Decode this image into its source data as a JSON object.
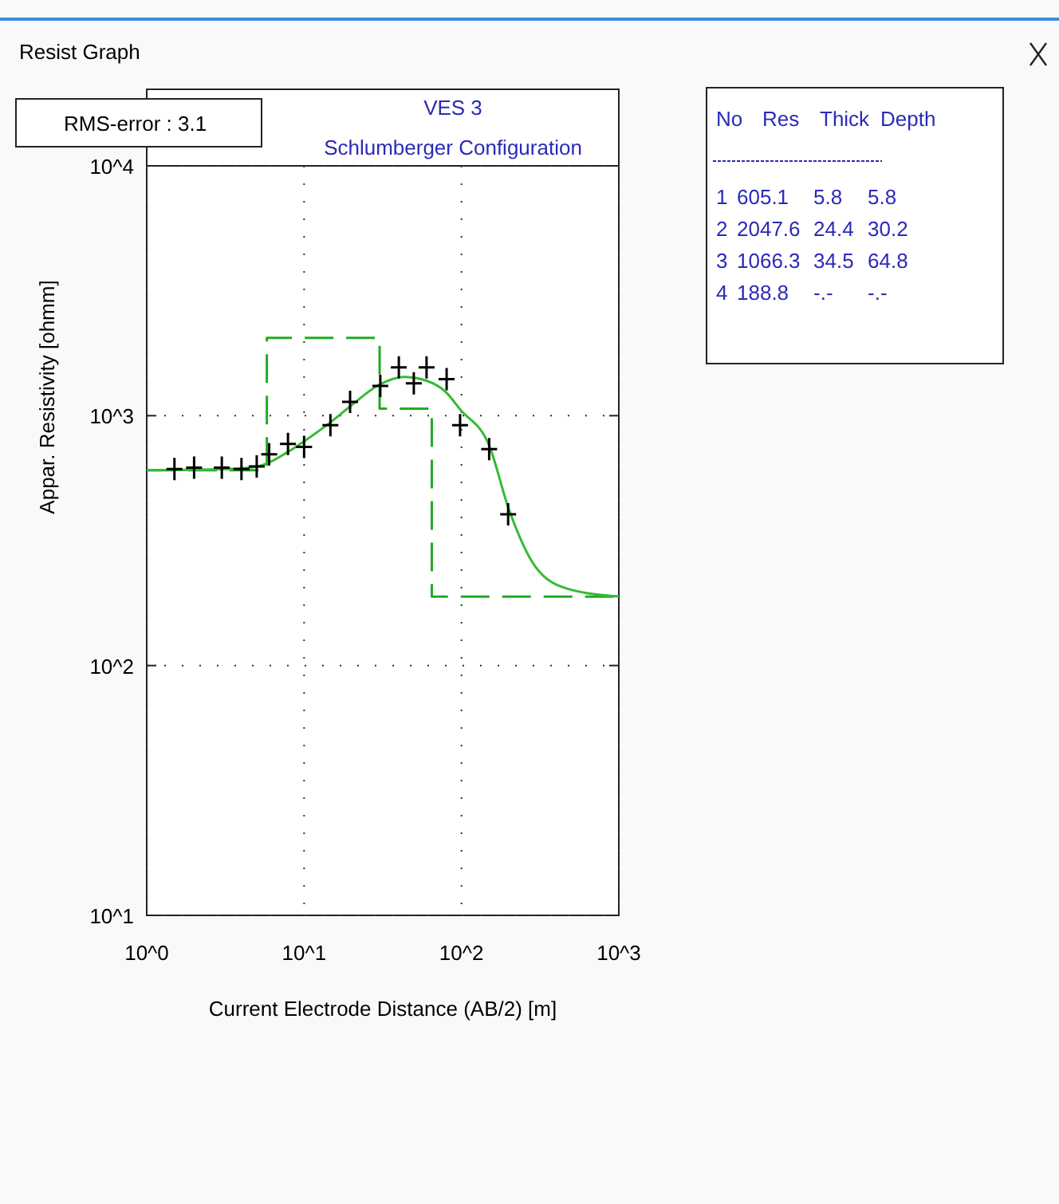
{
  "chart_data": {
    "type": "scatter",
    "title": "VES 3",
    "subtitle": "Schlumberger Configuration",
    "xlabel": "Current Electrode Distance (AB/2) [m]",
    "ylabel": "Appar. Resistivity [ohmm]",
    "log": "xy",
    "grid": true,
    "xlim": [
      1,
      1000
    ],
    "ylim": [
      10,
      10000
    ],
    "xticks": [
      {
        "value": 1,
        "label": "10^0"
      },
      {
        "value": 10,
        "label": "10^1"
      },
      {
        "value": 100,
        "label": "10^2"
      },
      {
        "value": 1000,
        "label": "10^3"
      }
    ],
    "yticks": [
      {
        "value": 10,
        "label": "10^1"
      },
      {
        "value": 100,
        "label": "10^2"
      },
      {
        "value": 1000,
        "label": "10^3"
      },
      {
        "value": 10000,
        "label": "10^4"
      }
    ],
    "series": [
      {
        "type": "step",
        "color": "#22aa22",
        "line_style": "dashed",
        "marker": "none",
        "x": [
          1,
          5.8,
          30.2,
          64.8,
          1000
        ],
        "values": [
          605.1,
          2047.6,
          1066.3,
          188.8,
          188.8
        ]
      },
      {
        "type": "line",
        "color": "#33bb33",
        "line_style": "solid",
        "marker": "none",
        "x": [
          1,
          3,
          5,
          6,
          8,
          10,
          15,
          20,
          30,
          43,
          60,
          80,
          98,
          150,
          200,
          296,
          472,
          1000
        ],
        "values": [
          605,
          610,
          625,
          650,
          720,
          790,
          950,
          1100,
          1330,
          1430,
          1380,
          1240,
          1060,
          760,
          423,
          248,
          203,
          189
        ]
      },
      {
        "color": "#000000",
        "marker": "cross",
        "x": [
          1.5,
          2,
          3,
          4,
          5,
          6,
          7.9,
          10,
          14.7,
          19.6,
          30.5,
          40,
          49.8,
          60,
          80.5,
          98,
          150,
          198
        ],
        "values": [
          611,
          620,
          620,
          611,
          626,
          700,
          771,
          750,
          916,
          1136,
          1315,
          1560,
          1347,
          1560,
          1400,
          916,
          735,
          403
        ]
      }
    ],
    "annotations": [
      "Resist Graph",
      "RMS-error :  3.1",
      "No  Res  Thick  Depth",
      "1  605.1  5.8  5.8",
      "2  2047.6  24.4  30.2",
      "3  1066.3  34.5  64.8",
      "4  188.8  -.-  -.-"
    ]
  }
}
